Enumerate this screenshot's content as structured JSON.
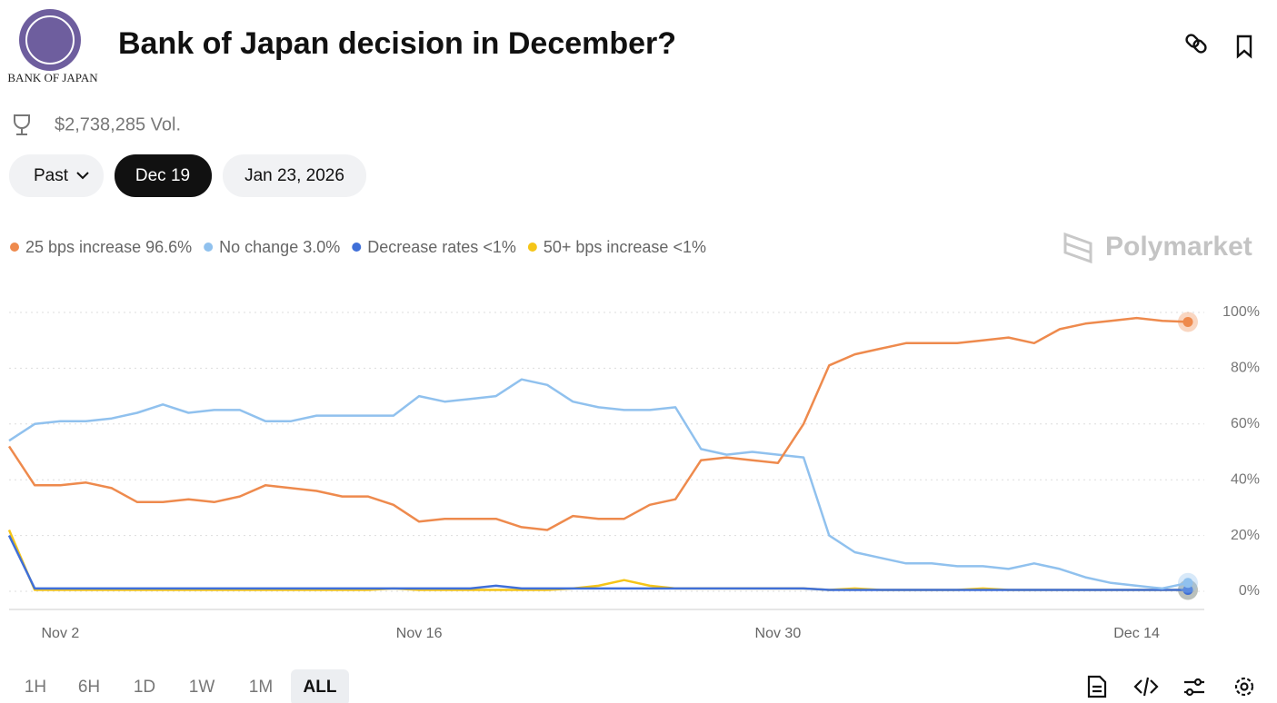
{
  "header": {
    "logo_text": "BANK OF JAPAN",
    "title": "Bank of Japan decision in December?",
    "volume": "$2,738,285 Vol."
  },
  "date_buttons": [
    "Past",
    "Dec 19",
    "Jan 23, 2026"
  ],
  "brand": "Polymarket",
  "range_buttons": [
    "1H",
    "6H",
    "1D",
    "1W",
    "1M",
    "ALL"
  ],
  "chart_data": {
    "type": "line",
    "x": [
      "Oct 31",
      "Nov 1",
      "Nov 2",
      "Nov 3",
      "Nov 4",
      "Nov 5",
      "Nov 6",
      "Nov 7",
      "Nov 8",
      "Nov 9",
      "Nov 10",
      "Nov 11",
      "Nov 12",
      "Nov 13",
      "Nov 14",
      "Nov 15",
      "Nov 16",
      "Nov 17",
      "Nov 18",
      "Nov 19",
      "Nov 20",
      "Nov 21",
      "Nov 22",
      "Nov 23",
      "Nov 24",
      "Nov 25",
      "Nov 26",
      "Nov 27",
      "Nov 28",
      "Nov 29",
      "Nov 30",
      "Dec 1",
      "Dec 2",
      "Dec 3",
      "Dec 4",
      "Dec 5",
      "Dec 6",
      "Dec 7",
      "Dec 8",
      "Dec 9",
      "Dec 10",
      "Dec 11",
      "Dec 12",
      "Dec 13",
      "Dec 14",
      "Dec 15",
      "Dec 16"
    ],
    "xticks": [
      "Nov 2",
      "Nov 16",
      "Nov 30",
      "Dec 14"
    ],
    "ylim": [
      0,
      100
    ],
    "yticks": [
      {
        "value": 0,
        "label": "0%"
      },
      {
        "value": 20,
        "label": "20%"
      },
      {
        "value": 40,
        "label": "40%"
      },
      {
        "value": 60,
        "label": "60%"
      },
      {
        "value": 80,
        "label": "80%"
      },
      {
        "value": 100,
        "label": "100%"
      }
    ],
    "grid": true,
    "series": [
      {
        "name": "25 bps increase",
        "current_label": "96.6%",
        "color": "#ee8a4d",
        "values": [
          52,
          38,
          38,
          39,
          37,
          32,
          32,
          33,
          32,
          34,
          38,
          37,
          36,
          34,
          34,
          31,
          25,
          26,
          26,
          26,
          23,
          22,
          27,
          26,
          26,
          31,
          33,
          47,
          48,
          47,
          46,
          60,
          81,
          85,
          87,
          89,
          89,
          89,
          90,
          91,
          89,
          94,
          96,
          97,
          98,
          97,
          96.6
        ]
      },
      {
        "name": "No change",
        "current_label": "3.0%",
        "color": "#90c1ee",
        "values": [
          54,
          60,
          61,
          61,
          62,
          64,
          67,
          64,
          65,
          65,
          61,
          61,
          63,
          63,
          63,
          63,
          70,
          68,
          69,
          70,
          76,
          74,
          68,
          66,
          65,
          65,
          66,
          51,
          49,
          50,
          49,
          48,
          20,
          14,
          12,
          10,
          10,
          9,
          9,
          8,
          10,
          8,
          5,
          3,
          2,
          1,
          3.0
        ]
      },
      {
        "name": "Decrease rates",
        "current_label": "<1%",
        "color": "#3f6fd8",
        "values": [
          20,
          1,
          1,
          1,
          1,
          1,
          1,
          1,
          1,
          1,
          1,
          1,
          1,
          1,
          1,
          1,
          1,
          1,
          1,
          2,
          1,
          1,
          1,
          1,
          1,
          1,
          1,
          1,
          1,
          1,
          1,
          1,
          0.5,
          0.5,
          0.5,
          0.5,
          0.5,
          0.5,
          0.5,
          0.5,
          0.5,
          0.5,
          0.5,
          0.5,
          0.5,
          0.5,
          0.5
        ]
      },
      {
        "name": "50+ bps increase",
        "current_label": "<1%",
        "color": "#f5c518",
        "values": [
          22,
          0.5,
          0.5,
          0.5,
          0.5,
          0.5,
          0.5,
          0.5,
          0.5,
          0.5,
          0.5,
          0.5,
          0.5,
          0.5,
          0.5,
          1,
          0.5,
          0.5,
          0.5,
          0.5,
          0.5,
          0.5,
          1,
          2,
          4,
          2,
          1,
          1,
          1,
          1,
          1,
          1,
          0.5,
          1,
          0.5,
          0.5,
          0.5,
          0.5,
          1,
          0.5,
          0.5,
          0.5,
          0.5,
          0.5,
          0.5,
          0.5,
          0.5
        ]
      }
    ]
  }
}
